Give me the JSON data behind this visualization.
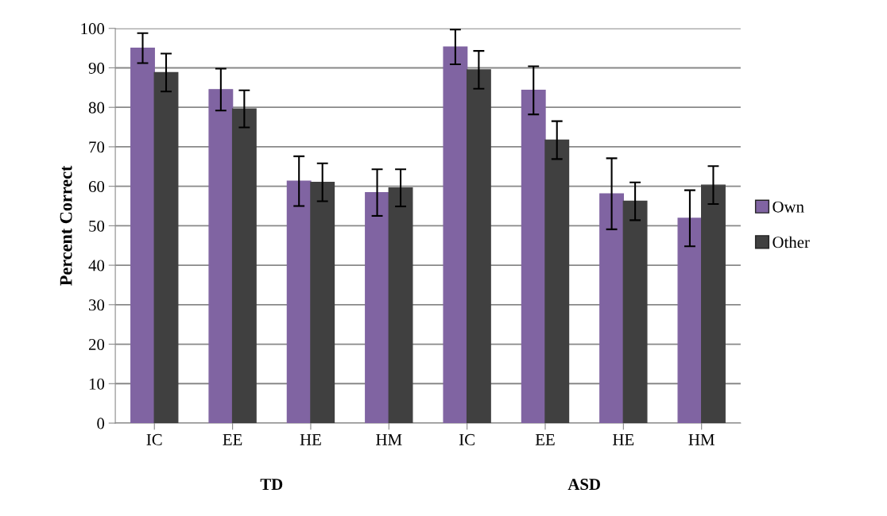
{
  "chart_data": {
    "type": "bar",
    "ylabel": "Percent Correct",
    "categories": [
      "IC",
      "EE",
      "HE",
      "HM",
      "IC",
      "EE",
      "HE",
      "HM"
    ],
    "series": [
      {
        "name": "Own",
        "color": "#8064a2",
        "values": [
          95.0,
          84.5,
          61.3,
          58.4,
          95.3,
          84.3,
          58.1,
          51.9
        ],
        "errors": [
          3.8,
          5.3,
          6.3,
          5.9,
          4.4,
          6.1,
          9.0,
          7.1
        ]
      },
      {
        "name": "Other",
        "color": "#404040",
        "values": [
          88.8,
          79.6,
          61.0,
          59.6,
          89.5,
          71.7,
          56.2,
          60.3
        ],
        "errors": [
          4.8,
          4.7,
          4.8,
          4.7,
          4.8,
          4.8,
          4.8,
          4.8
        ]
      }
    ],
    "annotations": [
      "TD",
      "ASD"
    ],
    "ylim": [
      0,
      100
    ],
    "yticks": [
      0,
      10,
      20,
      30,
      40,
      50,
      60,
      70,
      80,
      90,
      100
    ],
    "grid": "y",
    "legend": "right"
  }
}
